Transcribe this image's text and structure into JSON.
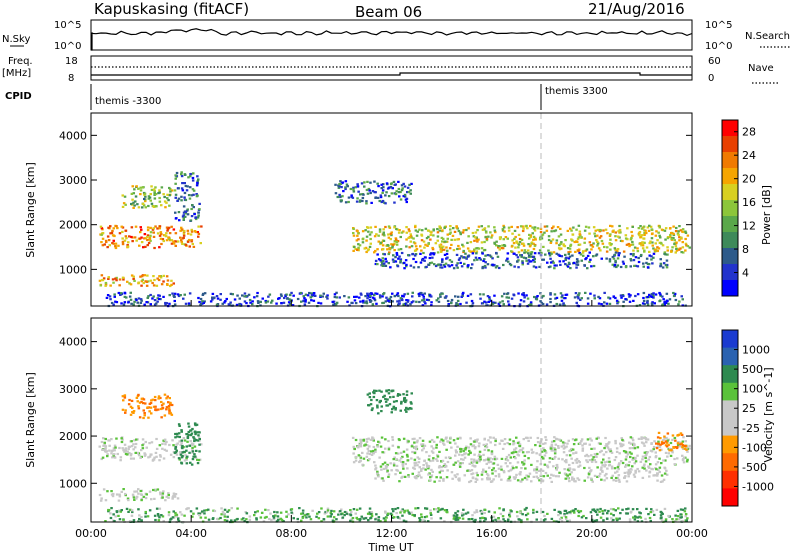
{
  "header": {
    "station": "Kapuskasing (fitACF)",
    "beam": "Beam 06",
    "date": "21/Aug/2016"
  },
  "strips": {
    "nsky_label": "N.Sky",
    "nsearch_label": "N.Search",
    "nsky_ticks": [
      "10^5",
      "10^0"
    ],
    "nsearch_ticks": [
      "10^5",
      "10^0"
    ],
    "freq_label_line1": "Freq.",
    "freq_label_line2": "[MHz]",
    "freq_ticks": [
      "18",
      "8"
    ],
    "nave_label": "Nave",
    "nave_ticks": [
      "60",
      "0"
    ],
    "cpid_label": "CPID",
    "cpid_entries": [
      {
        "text": "themis -3300",
        "hour": 0.15
      },
      {
        "text": "themis 3300",
        "hour": 18.0
      }
    ]
  },
  "chart_data": [
    {
      "type": "heatmap",
      "ylabel": "Slant Range [km]",
      "xlabel": "",
      "ylim": [
        180,
        4500
      ],
      "xlim": [
        0,
        24
      ],
      "yticks": [
        1000,
        2000,
        3000,
        4000
      ],
      "colorbar": {
        "label": "Power [dB]",
        "ticks": [
          4,
          8,
          12,
          16,
          20,
          24,
          28
        ],
        "range": [
          0,
          30
        ],
        "colors": [
          "#0000ff",
          "#2233cc",
          "#2d5a8a",
          "#3e8a5a",
          "#5aa84a",
          "#8cc63a",
          "#d8d020",
          "#f5a500",
          "#f07a00",
          "#e84000",
          "#ff0000"
        ]
      },
      "bands": [
        {
          "t0": 0.3,
          "t1": 4.4,
          "r0": 1500,
          "r1": 2000,
          "db": 22
        },
        {
          "t0": 0.3,
          "t1": 3.5,
          "r0": 650,
          "r1": 900,
          "db": 21
        },
        {
          "t0": 1.2,
          "t1": 3.2,
          "r0": 2400,
          "r1": 2900,
          "db": 14
        },
        {
          "t0": 3.3,
          "t1": 4.3,
          "r0": 2100,
          "r1": 3200,
          "db": 8
        },
        {
          "t0": 10.4,
          "t1": 23.9,
          "r0": 1400,
          "r1": 2000,
          "db": 17
        },
        {
          "t0": 11.3,
          "t1": 23.0,
          "r0": 1050,
          "r1": 1400,
          "db": 6
        },
        {
          "t0": 9.7,
          "t1": 12.8,
          "r0": 2500,
          "r1": 3000,
          "db": 7
        },
        {
          "t0": 0.5,
          "t1": 23.8,
          "r0": 200,
          "r1": 500,
          "db": 5
        }
      ]
    },
    {
      "type": "heatmap",
      "ylabel": "Slant Range [km]",
      "xlabel": "Time UT",
      "ylim": [
        180,
        4500
      ],
      "xlim": [
        0,
        24
      ],
      "yticks": [
        1000,
        2000,
        3000,
        4000
      ],
      "xticks": [
        "00:00",
        "04:00",
        "08:00",
        "12:00",
        "16:00",
        "20:00",
        "00:00"
      ],
      "colorbar": {
        "label": "Velocity [m s^-1]",
        "ticks": [
          "1000",
          "500",
          "100",
          "25",
          "-25",
          "-100",
          "-500",
          "-1000"
        ],
        "colors": [
          "#1a3bd0",
          "#2a62b0",
          "#2e8a50",
          "#5ac23a",
          "#c8c8c8",
          "#c8c8c8",
          "#ff9a00",
          "#ff6a00",
          "#ff3000",
          "#ff0000"
        ]
      },
      "bands": [
        {
          "t0": 0.3,
          "t1": 4.4,
          "r0": 1500,
          "r1": 2000,
          "v": 0
        },
        {
          "t0": 0.3,
          "t1": 3.5,
          "r0": 650,
          "r1": 900,
          "v": 0
        },
        {
          "t0": 1.2,
          "t1": 3.2,
          "r0": 2400,
          "r1": 2900,
          "v": -300
        },
        {
          "t0": 3.3,
          "t1": 4.3,
          "r0": 1400,
          "r1": 2300,
          "v": 200
        },
        {
          "t0": 10.4,
          "t1": 23.9,
          "r0": 1400,
          "r1": 2000,
          "v": 0
        },
        {
          "t0": 11.3,
          "t1": 23.0,
          "r0": 1050,
          "r1": 1400,
          "v": 0
        },
        {
          "t0": 11.0,
          "t1": 12.8,
          "r0": 2500,
          "r1": 3000,
          "v": 150
        },
        {
          "t0": 22.5,
          "t1": 23.8,
          "r0": 1700,
          "r1": 2100,
          "v": -300
        },
        {
          "t0": 0.5,
          "t1": 23.8,
          "r0": 200,
          "r1": 500,
          "v": 60
        }
      ]
    }
  ]
}
